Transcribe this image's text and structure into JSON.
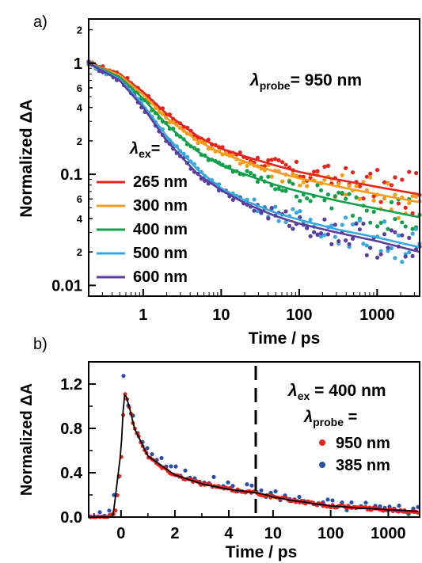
{
  "chart_data": [
    {
      "panel_label": "a)",
      "type": "line",
      "x_scale": "log",
      "y_scale": "log",
      "xlabel": "Time / ps",
      "ylabel": "Normalized ΔA",
      "xlim": [
        0.2,
        3500
      ],
      "ylim": [
        0.008,
        2.5
      ],
      "x_ticks": [
        1,
        10,
        100,
        1000
      ],
      "x_tick_labels": [
        "1",
        "10",
        "100",
        "1000"
      ],
      "y_ticks": [
        0.01,
        0.1,
        1
      ],
      "y_tick_labels": [
        "0.01",
        "0.1",
        "1"
      ],
      "y_minor_ticks": [
        0.02,
        0.04,
        0.06,
        0.2,
        0.4,
        0.6,
        2
      ],
      "y_minor_labels": [
        "2",
        "4",
        "6",
        "2",
        "4",
        "6",
        "2"
      ],
      "annotation": {
        "prefix": "λ",
        "sub": "probe",
        "suffix": "= 950 nm"
      },
      "legend": {
        "title_prefix": "λ",
        "title_sub": "ex",
        "title_suffix": "=",
        "placement": "lower-left"
      },
      "series": [
        {
          "name": "265 nm",
          "color": "#e8221c",
          "x": [
            0.2,
            0.5,
            1,
            2,
            5,
            10,
            20,
            50,
            100,
            300,
            1000,
            3500
          ],
          "y": [
            1.0,
            0.8,
            0.55,
            0.35,
            0.22,
            0.17,
            0.145,
            0.12,
            0.105,
            0.09,
            0.077,
            0.066
          ]
        },
        {
          "name": "300 nm",
          "color": "#f59d1a",
          "x": [
            0.2,
            0.5,
            1,
            2,
            5,
            10,
            20,
            50,
            100,
            300,
            1000,
            3500
          ],
          "y": [
            1.0,
            0.78,
            0.52,
            0.32,
            0.2,
            0.155,
            0.13,
            0.105,
            0.092,
            0.078,
            0.066,
            0.056
          ]
        },
        {
          "name": "400 nm",
          "color": "#12a14a",
          "x": [
            0.2,
            0.5,
            1,
            2,
            5,
            10,
            20,
            50,
            100,
            300,
            1000,
            3500
          ],
          "y": [
            1.0,
            0.75,
            0.48,
            0.28,
            0.16,
            0.12,
            0.1,
            0.08,
            0.07,
            0.058,
            0.049,
            0.041
          ]
        },
        {
          "name": "500 nm",
          "color": "#35a9df",
          "x": [
            0.2,
            0.5,
            1,
            2,
            5,
            10,
            20,
            50,
            100,
            300,
            1000,
            3500
          ],
          "y": [
            1.0,
            0.72,
            0.42,
            0.22,
            0.11,
            0.075,
            0.058,
            0.045,
            0.039,
            0.032,
            0.027,
            0.022
          ]
        },
        {
          "name": "600 nm",
          "color": "#5a3f9e",
          "x": [
            0.2,
            0.5,
            1,
            2,
            5,
            10,
            20,
            50,
            100,
            300,
            1000,
            3500
          ],
          "y": [
            1.0,
            0.7,
            0.4,
            0.2,
            0.1,
            0.072,
            0.055,
            0.042,
            0.036,
            0.03,
            0.025,
            0.02
          ]
        }
      ]
    },
    {
      "panel_label": "b)",
      "type": "scatter",
      "x_scale": "linear (−1 to 5), then log (5 to 3500)",
      "xlabel": "Time / ps",
      "ylabel": "Normalized ΔA",
      "xlim": [
        -1.2,
        3500
      ],
      "ylim": [
        0,
        1.4
      ],
      "x_ticks": [
        0,
        2,
        4,
        10,
        100,
        1000
      ],
      "x_tick_labels": [
        "0",
        "2",
        "4",
        "10",
        "100",
        "1000"
      ],
      "y_ticks": [
        0.0,
        0.4,
        0.8,
        1.2
      ],
      "y_tick_labels": [
        "0.0",
        "0.4",
        "0.8",
        "1.2"
      ],
      "axis_break": "dashed vertical line at 5 ps",
      "annotation": {
        "prefix": "λ",
        "sub": "ex",
        "suffix": " = 400 nm"
      },
      "legend": {
        "title_prefix": "λ",
        "title_sub": "probe",
        "title_suffix": " =",
        "placement": "right"
      },
      "series": [
        {
          "name": "950 nm",
          "color": "#e8221c",
          "x": [
            -1,
            -0.5,
            -0.2,
            0,
            0.1,
            0.15,
            0.3,
            0.5,
            1,
            1.5,
            2,
            3,
            4,
            5,
            7,
            10,
            20,
            50,
            100,
            200,
            500,
            1000,
            2000,
            3500
          ],
          "y": [
            0,
            0,
            0.05,
            0.5,
            1.0,
            1.12,
            1.0,
            0.8,
            0.55,
            0.45,
            0.38,
            0.3,
            0.25,
            0.22,
            0.2,
            0.18,
            0.15,
            0.12,
            0.1,
            0.09,
            0.075,
            0.065,
            0.055,
            0.05
          ]
        },
        {
          "name": "385 nm",
          "color": "#2b4ea8",
          "x": [
            -1,
            -0.5,
            0,
            0.1,
            0.2,
            0.5,
            1,
            1.5,
            2,
            3,
            4,
            5,
            10,
            20,
            50,
            100,
            200,
            500,
            1000,
            2000,
            3500
          ],
          "y": [
            0,
            0.02,
            0.4,
            1.3,
            1.1,
            0.85,
            0.6,
            0.5,
            0.42,
            0.35,
            0.28,
            0.25,
            0.2,
            0.17,
            0.13,
            0.12,
            0.1,
            0.1,
            0.08,
            0.07,
            0.07
          ]
        },
        {
          "name": "fit",
          "color": "#000000",
          "x": [
            -0.3,
            0,
            0.1,
            0.15,
            0.3,
            0.5,
            1,
            2,
            3,
            4,
            5,
            10,
            20,
            50,
            100,
            300,
            1000,
            3500
          ],
          "y": [
            0,
            0.6,
            1.05,
            1.12,
            1.0,
            0.8,
            0.55,
            0.38,
            0.3,
            0.25,
            0.22,
            0.18,
            0.15,
            0.12,
            0.1,
            0.08,
            0.065,
            0.05
          ]
        }
      ]
    }
  ]
}
